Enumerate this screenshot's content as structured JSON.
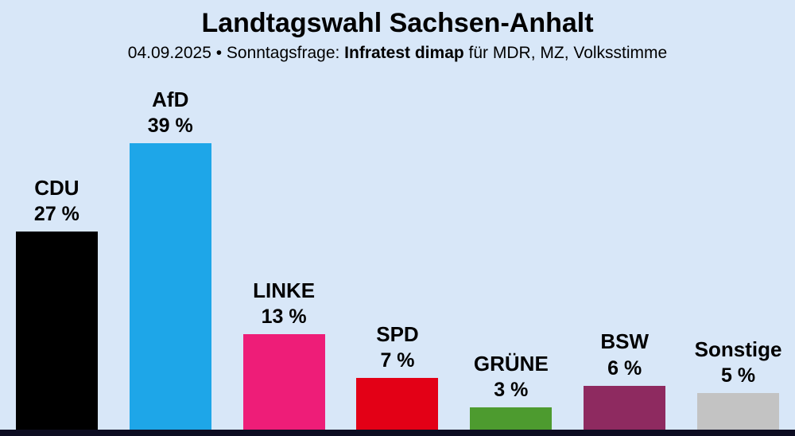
{
  "header": {
    "title": "Landtagswahl Sachsen-Anhalt",
    "subtitle_prefix": "04.09.2025 • Sonntagsfrage: ",
    "subtitle_bold": "Infratest dimap",
    "subtitle_suffix": " für MDR, MZ, Volksstimme"
  },
  "chart_data": {
    "type": "bar",
    "title": "Landtagswahl Sachsen-Anhalt",
    "subtitle": "04.09.2025 • Sonntagsfrage: Infratest dimap für MDR, MZ, Volksstimme",
    "categories": [
      "CDU",
      "AfD",
      "LINKE",
      "SPD",
      "GRÜNE",
      "BSW",
      "Sonstige"
    ],
    "values": [
      27,
      39,
      13,
      7,
      3,
      6,
      5
    ],
    "value_labels": [
      "27 %",
      "39 %",
      "13 %",
      "7 %",
      "3 %",
      "6 %",
      "5 %"
    ],
    "colors": [
      "#000000",
      "#1ea6e8",
      "#ee1d78",
      "#e30016",
      "#4d9b2f",
      "#8e2a60",
      "#c3c3c3"
    ],
    "xlabel": "",
    "ylabel": "",
    "ylim": [
      0,
      43
    ],
    "grid": false,
    "legend": false,
    "background_color": "#d8e7f8",
    "baseline_color": "#0d0d22"
  }
}
